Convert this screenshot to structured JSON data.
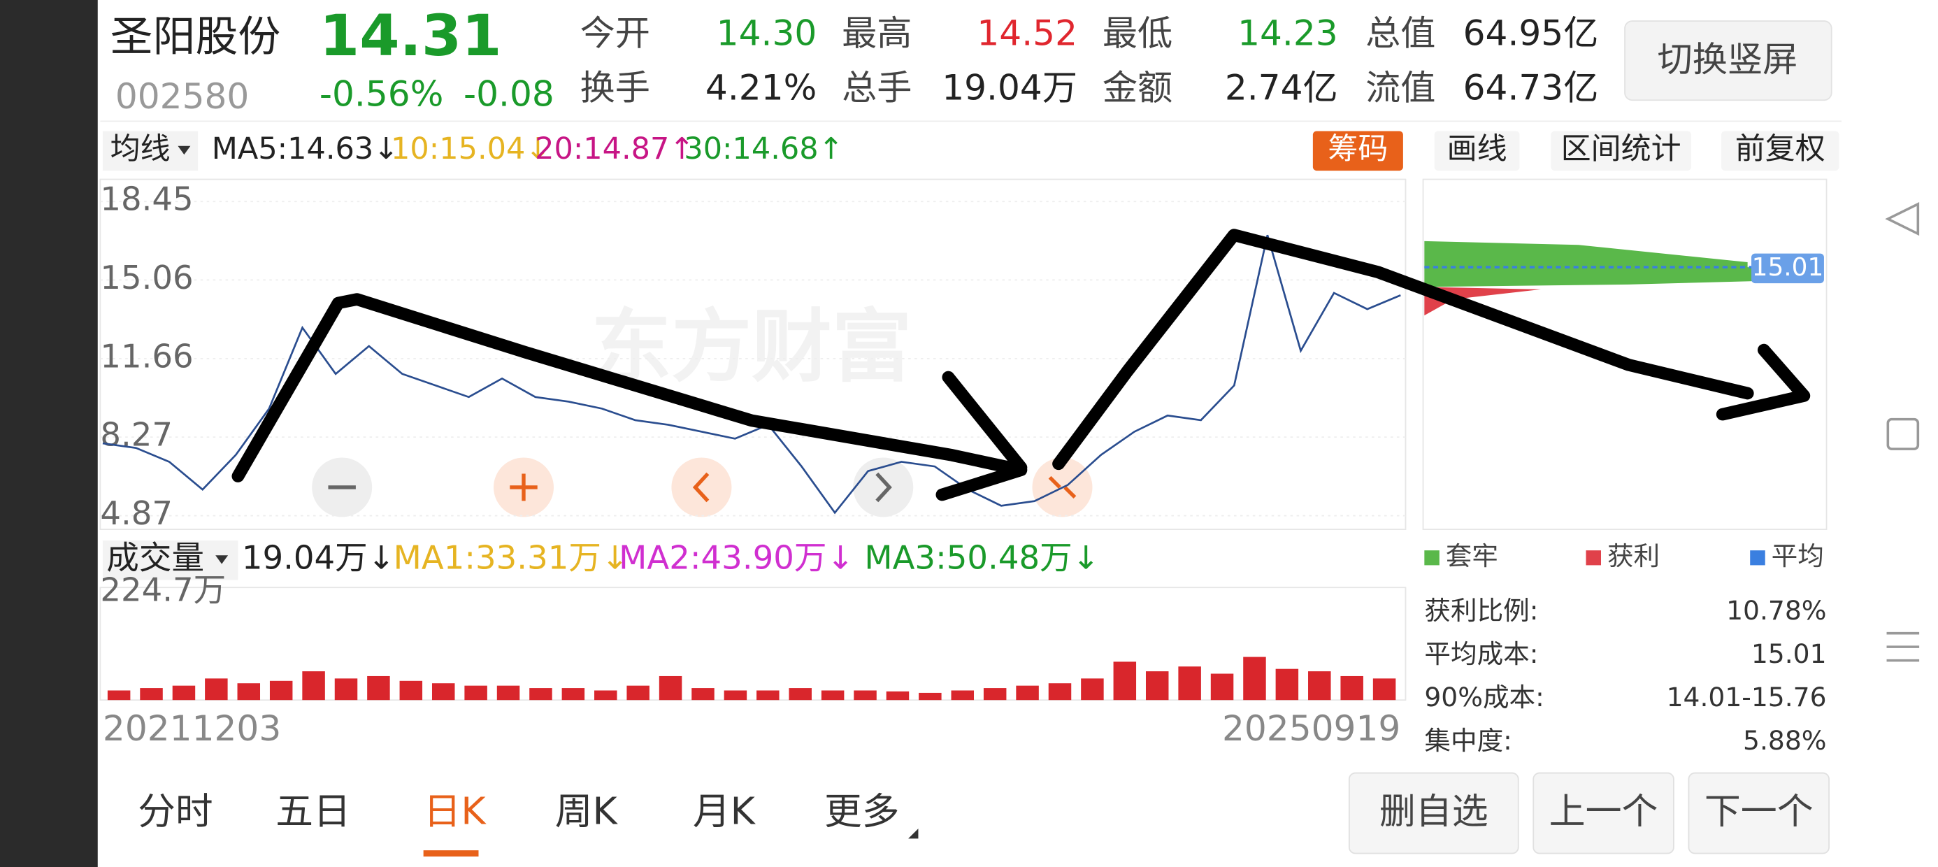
{
  "header": {
    "name": "圣阳股份",
    "price": "14.31",
    "code": "002580",
    "change_pct": "-0.56%",
    "change": "-0.08",
    "stats": [
      {
        "label": "今开",
        "value": "14.30"
      },
      {
        "label": "最高",
        "value": "14.52"
      },
      {
        "label": "最低",
        "value": "14.23"
      },
      {
        "label": "总值",
        "value": "64.95亿"
      },
      {
        "label": "换手",
        "value": "4.21%"
      },
      {
        "label": "总手",
        "value": "19.04万"
      },
      {
        "label": "金额",
        "value": "2.74亿"
      },
      {
        "label": "流值",
        "value": "64.73亿"
      }
    ],
    "switch_button": "切换竖屏"
  },
  "toolbar": {
    "indicator": "均线",
    "ma": [
      "MA5:14.63↓",
      "10:15.04↓",
      "20:14.87↑",
      "30:14.68↑"
    ],
    "buttons": [
      "筹码",
      "画线",
      "区间统计",
      "前复权"
    ]
  },
  "watermark": "东方财富",
  "volume_toolbar": {
    "indicator": "成交量",
    "items": [
      "19.04万↓",
      "MA1:33.31万↓",
      "MA2:43.90万↓",
      "MA3:50.48万↓"
    ]
  },
  "chart_data": [
    {
      "type": "line",
      "categories": [
        "20211203",
        null,
        null,
        null,
        null,
        null,
        null,
        null,
        null,
        null,
        null,
        null,
        null,
        null,
        null,
        null,
        null,
        null,
        null,
        null,
        null,
        null,
        null,
        null,
        null,
        null,
        null,
        null,
        null,
        null,
        null,
        null,
        null,
        null,
        null,
        null,
        null,
        null,
        null,
        "20250919"
      ],
      "values": [
        8.0,
        7.8,
        7.2,
        6.0,
        7.5,
        9.5,
        13.0,
        11.0,
        12.2,
        11.0,
        10.5,
        10.0,
        10.8,
        10.0,
        9.8,
        9.5,
        9.0,
        8.8,
        8.5,
        8.2,
        8.8,
        7.0,
        5.0,
        6.8,
        7.2,
        7.0,
        6.0,
        5.3,
        5.5,
        6.2,
        7.5,
        8.5,
        9.2,
        9.0,
        10.5,
        17.0,
        12.0,
        14.5,
        13.8,
        14.4
      ],
      "color": "#2a4d8f",
      "ylim": [
        4.28,
        19.41
      ],
      "yticks": [
        18.45,
        15.06,
        11.66,
        8.27,
        4.87
      ],
      "grid": true
    },
    {
      "type": "bar",
      "values": [
        20,
        25,
        30,
        45,
        35,
        40,
        60,
        45,
        50,
        40,
        35,
        30,
        30,
        25,
        25,
        20,
        30,
        50,
        25,
        20,
        20,
        25,
        20,
        20,
        18,
        15,
        20,
        25,
        30,
        35,
        45,
        80,
        60,
        70,
        55,
        90,
        65,
        60,
        50,
        45
      ],
      "color": "#d9262c",
      "ylim": [
        0,
        235
      ],
      "yticks": [
        {
          "value": 224.7,
          "label": "224.7万"
        }
      ]
    }
  ],
  "chips": {
    "avg_label": "15.01",
    "legend": [
      {
        "name": "套牢",
        "color": "#5ab84a"
      },
      {
        "name": "获利",
        "color": "#e0414a"
      },
      {
        "name": "平均",
        "color": "#3a7fe0"
      }
    ],
    "stats": [
      {
        "label": "获利比例:",
        "value": "10.78%"
      },
      {
        "label": "平均成本:",
        "value": "15.01"
      },
      {
        "label": "90%成本:",
        "value": "14.01-15.76"
      },
      {
        "label": "集中度:",
        "value": "5.88%"
      }
    ]
  },
  "tabs": [
    "分时",
    "五日",
    "日K",
    "周K",
    "月K",
    "更多"
  ],
  "actions": [
    "删自选",
    "上一个",
    "下一个"
  ]
}
